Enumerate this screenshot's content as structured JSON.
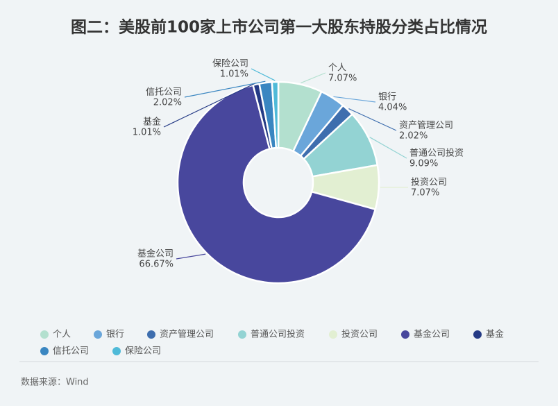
{
  "chart_data": {
    "type": "donut",
    "title": "图二：美股前100家上市公司第一大股东持股分类占比情况",
    "categories": [
      "个人",
      "银行",
      "资产管理公司",
      "普通公司投资",
      "投资公司",
      "基金公司",
      "基金",
      "信托公司",
      "保险公司"
    ],
    "values": [
      7.07,
      4.04,
      2.02,
      9.09,
      7.07,
      66.67,
      1.01,
      2.02,
      1.01
    ],
    "value_labels": [
      "7.07%",
      "4.04%",
      "2.02%",
      "9.09%",
      "7.07%",
      "66.67%",
      "1.01%",
      "2.02%",
      "1.01%"
    ],
    "colors": [
      "#b3e0cf",
      "#6aa6da",
      "#3e6eae",
      "#93d3d3",
      "#e2efd2",
      "#48479d",
      "#243a85",
      "#3a86c1",
      "#4fbad8"
    ],
    "source": "数据来源：Wind"
  }
}
